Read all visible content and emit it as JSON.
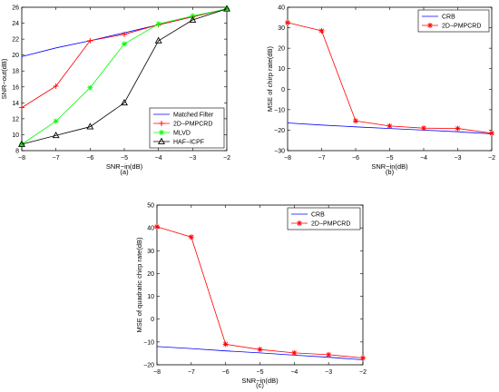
{
  "chart_data": [
    {
      "type": "line",
      "panel_label": "(a)",
      "xlabel": "SNR−in(dB)",
      "ylabel": "SNR−out(dB)",
      "xlim": [
        -8,
        -2
      ],
      "ylim": [
        8,
        26
      ],
      "xticks": [
        -8,
        -7,
        -6,
        -5,
        -4,
        -3,
        -2
      ],
      "yticks": [
        8,
        10,
        12,
        14,
        16,
        18,
        20,
        22,
        24,
        26
      ],
      "x": [
        -8,
        -7,
        -6,
        -5,
        -4,
        -3,
        -2
      ],
      "grid": false,
      "legend_position": "bottom-right",
      "series": [
        {
          "name": "Matched Filter",
          "color": "#0000ff",
          "marker": "none",
          "values": [
            19.8,
            20.9,
            21.8,
            22.8,
            23.8,
            24.8,
            25.8
          ]
        },
        {
          "name": "2D−PMPCRD",
          "color": "#ff0000",
          "marker": "plus",
          "values": [
            13.4,
            16.1,
            21.8,
            22.6,
            23.8,
            24.8,
            25.8
          ]
        },
        {
          "name": "MLVD",
          "color": "#00ff00",
          "marker": "asterisk",
          "values": [
            8.8,
            11.7,
            15.9,
            21.4,
            23.9,
            24.9,
            25.8
          ]
        },
        {
          "name": "HAF−ICPF",
          "color": "#000000",
          "marker": "triangle",
          "values": [
            8.8,
            9.9,
            11.0,
            14.0,
            21.8,
            24.4,
            25.8
          ]
        }
      ]
    },
    {
      "type": "line",
      "panel_label": "(b)",
      "xlabel": "SNR−in(dB)",
      "ylabel": "MSE of chirp rate(dB)",
      "xlim": [
        -8,
        -2
      ],
      "ylim": [
        -30,
        40
      ],
      "xticks": [
        -8,
        -7,
        -6,
        -5,
        -4,
        -3,
        -2
      ],
      "yticks": [
        -30,
        -20,
        -10,
        0,
        10,
        20,
        30,
        40
      ],
      "x": [
        -8,
        -7,
        -6,
        -5,
        -4,
        -3,
        -2
      ],
      "grid": false,
      "legend_position": "top-right",
      "series": [
        {
          "name": "CRB",
          "color": "#0000ff",
          "marker": "none",
          "values": [
            -16.5,
            -17.5,
            -18.4,
            -19.2,
            -20.0,
            -20.8,
            -21.8
          ]
        },
        {
          "name": "2D−PMPCRD",
          "color": "#ff0000",
          "marker": "asterisk",
          "values": [
            32.5,
            28.5,
            -15.5,
            -18.0,
            -19.0,
            -19.2,
            -21.5
          ]
        }
      ]
    },
    {
      "type": "line",
      "panel_label": "(c)",
      "xlabel": "SNR−in(dB)",
      "ylabel": "MSE of quadratic chirp rate(dB)",
      "xlim": [
        -8,
        -2
      ],
      "ylim": [
        -20,
        50
      ],
      "xticks": [
        -8,
        -7,
        -6,
        -5,
        -4,
        -3,
        -2
      ],
      "yticks": [
        -20,
        -10,
        0,
        10,
        20,
        30,
        40,
        50
      ],
      "x": [
        -8,
        -7,
        -6,
        -5,
        -4,
        -3,
        -2
      ],
      "grid": false,
      "legend_position": "top-right",
      "series": [
        {
          "name": "CRB",
          "color": "#0000ff",
          "marker": "none",
          "values": [
            -12.0,
            -12.9,
            -13.9,
            -14.8,
            -15.8,
            -16.7,
            -17.8
          ]
        },
        {
          "name": "2D−PMPCRD",
          "color": "#ff0000",
          "marker": "asterisk",
          "values": [
            40.5,
            36.0,
            -11.0,
            -13.3,
            -14.8,
            -15.6,
            -17.0
          ]
        }
      ]
    }
  ]
}
